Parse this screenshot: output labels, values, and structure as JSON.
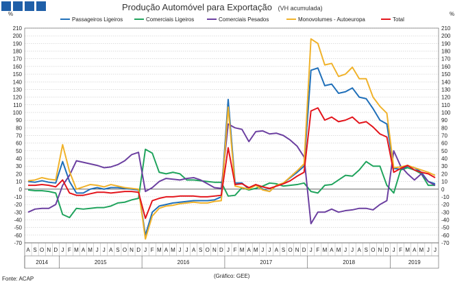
{
  "logo": {
    "color": "#1f5fa8"
  },
  "header": {
    "title": "Produção Automóvel para Exportação",
    "subtitle": "(VH acumulada)"
  },
  "footer": {
    "source": "Fonte: ACAP",
    "credit": "(Gráfico: GEE)"
  },
  "chart_data": {
    "type": "line",
    "ylabel_left": "%",
    "ylabel_right": "%",
    "ylim": [
      -70,
      210
    ],
    "ytick_step": 10,
    "grid": true,
    "legend_position": "top",
    "months": [
      "A",
      "S",
      "O",
      "N",
      "D",
      "J",
      "F",
      "M",
      "A",
      "M",
      "J",
      "J",
      "A",
      "S",
      "O",
      "N",
      "D",
      "J",
      "F",
      "M",
      "A",
      "M",
      "J",
      "J",
      "A",
      "S",
      "O",
      "N",
      "D",
      "J",
      "F",
      "M",
      "A",
      "M",
      "J",
      "J",
      "A",
      "S",
      "O",
      "N",
      "D",
      "J",
      "F",
      "M",
      "A",
      "M",
      "J",
      "J",
      "A",
      "S",
      "O",
      "N",
      "D",
      "J",
      "F",
      "M",
      "A",
      "M",
      "J",
      "J"
    ],
    "years": [
      {
        "label": "2014",
        "start": 0,
        "end": 4
      },
      {
        "label": "2015",
        "start": 5,
        "end": 16
      },
      {
        "label": "2016",
        "start": 17,
        "end": 28
      },
      {
        "label": "2017",
        "start": 29,
        "end": 40
      },
      {
        "label": "2018",
        "start": 41,
        "end": 52
      },
      {
        "label": "2019",
        "start": 53,
        "end": 59
      }
    ],
    "series": [
      {
        "name": "Passageiros Ligeiros",
        "color": "#1f6fb9",
        "values": [
          10,
          9,
          11,
          9,
          8,
          36,
          10,
          -5,
          -5,
          0,
          2,
          0,
          2,
          2,
          1,
          0,
          -1,
          -60,
          -30,
          -22,
          -20,
          -18,
          -17,
          -16,
          -15,
          -15,
          -15,
          -14,
          -10,
          117,
          8,
          8,
          0,
          6,
          0,
          -3,
          5,
          8,
          15,
          22,
          30,
          155,
          158,
          135,
          137,
          125,
          127,
          132,
          120,
          118,
          105,
          90,
          85,
          27,
          26,
          30,
          28,
          22,
          10,
          7
        ]
      },
      {
        "name": "Comerciais Ligeiros",
        "color": "#1fa35c",
        "values": [
          -1,
          -2,
          -2,
          -3,
          -5,
          -33,
          -37,
          -25,
          -26,
          -25,
          -24,
          -24,
          -22,
          -18,
          -17,
          -14,
          -12,
          52,
          47,
          22,
          20,
          22,
          20,
          12,
          12,
          11,
          10,
          9,
          9,
          -9,
          -8,
          2,
          -1,
          1,
          4,
          8,
          7,
          4,
          5,
          6,
          8,
          -3,
          -5,
          5,
          6,
          12,
          18,
          17,
          25,
          36,
          30,
          30,
          5,
          -5,
          25,
          28,
          25,
          20,
          5,
          5
        ]
      },
      {
        "name": "Comerciais Pesados",
        "color": "#6b3fa0",
        "values": [
          -30,
          -26,
          -25,
          -25,
          -20,
          5,
          18,
          37,
          35,
          33,
          31,
          28,
          29,
          32,
          37,
          45,
          48,
          -3,
          2,
          10,
          14,
          13,
          12,
          14,
          15,
          12,
          7,
          2,
          1,
          85,
          80,
          78,
          62,
          75,
          76,
          72,
          73,
          70,
          64,
          56,
          42,
          -45,
          -30,
          -30,
          -26,
          -30,
          -28,
          -27,
          -25,
          -25,
          -27,
          -20,
          -15,
          50,
          30,
          20,
          12,
          20,
          10,
          5
        ]
      },
      {
        "name": "Monovolumes - Autoeuropa",
        "color": "#f0b22a",
        "values": [
          11,
          12,
          15,
          13,
          12,
          58,
          23,
          0,
          3,
          6,
          5,
          3,
          6,
          4,
          2,
          1,
          0,
          -65,
          -35,
          -25,
          -22,
          -21,
          -19,
          -18,
          -17,
          -18,
          -18,
          -16,
          -15,
          107,
          4,
          2,
          0,
          5,
          -1,
          -3,
          5,
          8,
          16,
          24,
          33,
          196,
          190,
          162,
          164,
          147,
          150,
          159,
          144,
          144,
          120,
          108,
          99,
          28,
          29,
          31,
          28,
          25,
          22,
          18
        ]
      },
      {
        "name": "Total",
        "color": "#e3141b",
        "values": [
          5,
          5,
          6,
          5,
          3,
          12,
          -5,
          -8,
          -8,
          -6,
          -4,
          -4,
          -5,
          -4,
          -3,
          -3,
          -4,
          -38,
          -15,
          -12,
          -10,
          -10,
          -9,
          -9,
          -9,
          -10,
          -10,
          -9,
          -8,
          54,
          6,
          7,
          2,
          6,
          3,
          1,
          4,
          7,
          11,
          17,
          22,
          102,
          106,
          90,
          94,
          88,
          90,
          94,
          86,
          88,
          81,
          72,
          68,
          22,
          27,
          31,
          25,
          22,
          20,
          15
        ]
      }
    ]
  }
}
